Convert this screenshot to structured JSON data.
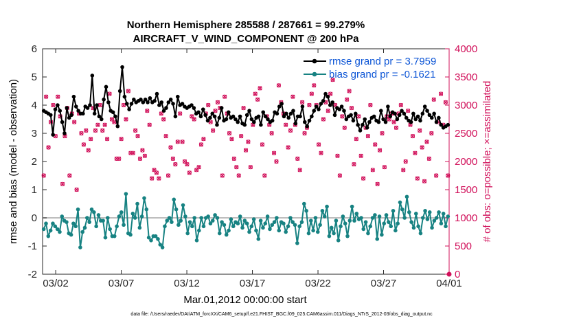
{
  "chart_data": {
    "type": "line",
    "title_line1": "Northern Hemisphere 285588 / 287661 = 99.279%",
    "title_line2": "AIRCRAFT_V_WIND_COMPONENT @ 200 hPa",
    "xlabel": "Mar.01,2012 00:00:00 start",
    "ylabel_left": "rmse and bias (model - observation)",
    "ylabel_right": "# of obs: o=possible; ×=assimilated",
    "footer": "data file: /Users/raeder/DAI/ATM_forcXX/CAM6_setup/f.e21.FHIST_BGC.f09_025.CAM6assim.011/Diags_NTrS_2012-03/obs_diag_output.nc",
    "xlim": [
      0,
      31
    ],
    "ylim_left": [
      -2,
      6
    ],
    "ylim_right": [
      0,
      4000
    ],
    "x_ticks": [
      1,
      6,
      11,
      16,
      21,
      26,
      31
    ],
    "x_tick_labels": [
      "03/02",
      "03/07",
      "03/12",
      "03/17",
      "03/22",
      "03/27",
      "04/01"
    ],
    "y_ticks_left": [
      -2,
      -1,
      0,
      1,
      2,
      3,
      4,
      5,
      6
    ],
    "y_tick_labels_left": [
      "-2",
      "-1",
      "0",
      "1",
      "2",
      "3",
      "4",
      "5",
      "6"
    ],
    "y_ticks_right": [
      0,
      500,
      1000,
      1500,
      2000,
      2500,
      3000,
      3500,
      4000
    ],
    "y_tick_labels_right": [
      "0",
      "500",
      "1000",
      "1500",
      "2000",
      "2500",
      "3000",
      "3500",
      "4000"
    ],
    "colors": {
      "rmse": "#000000",
      "bias": "#178282",
      "obs": "#d1105a",
      "zero_line": "#bdbdbd",
      "legend_text": "#0c55d6"
    },
    "series": [
      {
        "name": "rmse grand pr = 3.7959",
        "key": "rmse",
        "values": [
          3.8,
          3.75,
          3.7,
          3.65,
          2.95,
          3.85,
          4.0,
          3.8,
          3.4,
          3.0,
          3.9,
          3.55,
          3.65,
          4.3,
          3.95,
          3.8,
          3.7,
          3.7,
          3.95,
          3.9,
          4.0,
          5.05,
          3.7,
          4.0,
          3.6,
          3.5,
          4.2,
          4.65,
          4.1,
          3.8,
          3.75,
          3.6,
          3.25,
          4.5,
          5.35,
          4.3,
          4.05,
          3.85,
          4.05,
          4.2,
          4.1,
          4.15,
          4.2,
          4.1,
          4.2,
          4.1,
          4.25,
          4.1,
          4.15,
          4.4,
          4.0,
          4.1,
          3.8,
          3.9,
          4.1,
          4.2,
          4.05,
          3.6,
          4.3,
          4.0,
          4.05,
          3.95,
          3.9,
          3.95,
          4.0,
          3.9,
          3.7,
          3.75,
          3.6,
          3.85,
          3.65,
          3.45,
          3.55,
          3.7,
          3.6,
          3.3,
          3.55,
          3.9,
          3.45,
          3.5,
          3.75,
          3.55,
          3.6,
          3.5,
          3.4,
          3.6,
          3.35,
          3.3,
          3.65,
          3.8,
          3.5,
          3.4,
          3.55,
          3.6,
          3.3,
          3.75,
          3.6,
          3.5,
          3.4,
          3.45,
          3.75,
          3.7,
          3.95,
          4.05,
          3.6,
          3.7,
          3.55,
          3.7,
          3.8,
          3.35,
          3.6,
          3.6,
          3.95,
          3.4,
          3.25,
          3.45,
          3.6,
          3.8,
          3.95,
          3.85,
          4.05,
          4.15,
          4.4,
          4.3,
          4.0,
          4.1,
          3.65,
          3.9,
          3.85,
          3.95,
          3.8,
          3.5,
          3.6,
          3.65,
          3.45,
          3.7,
          3.3,
          3.1,
          3.3,
          3.5,
          3.2,
          3.4,
          3.55,
          3.6,
          3.45,
          3.4,
          3.8,
          3.5,
          3.4,
          3.95,
          3.6,
          3.75,
          3.7,
          3.5,
          3.65,
          3.8,
          3.7,
          3.55,
          3.45,
          3.4,
          3.7,
          3.5,
          3.6,
          3.45,
          3.7,
          3.95,
          3.8,
          3.65,
          3.55,
          3.7,
          3.4,
          3.55,
          3.3,
          3.2,
          3.25,
          3.3
        ]
      },
      {
        "name": "bias grand pr = -0.1621",
        "key": "bias",
        "values": [
          -0.4,
          -0.2,
          -0.65,
          -0.45,
          -0.2,
          -0.3,
          -0.4,
          -0.5,
          0.05,
          -0.1,
          -0.15,
          -0.55,
          -0.6,
          -0.2,
          -0.3,
          0.3,
          -1.05,
          -0.5,
          -0.35,
          0.0,
          -0.15,
          0.3,
          0.2,
          -0.3,
          0.1,
          -0.1,
          -0.1,
          -0.7,
          0.0,
          -0.4,
          -0.65,
          -0.65,
          -0.3,
          0.05,
          0.2,
          -0.25,
          0.85,
          -0.55,
          -0.6,
          0.15,
          0.0,
          0.5,
          -0.35,
          0.05,
          0.7,
          0.3,
          -0.7,
          -0.8,
          -0.65,
          -0.65,
          -0.75,
          -0.95,
          -1.05,
          -0.3,
          -0.1,
          0.0,
          -0.15,
          0.65,
          0.3,
          -0.25,
          -0.1,
          0.45,
          0.05,
          -0.55,
          -0.15,
          -0.3,
          0.0,
          -0.8,
          -0.45,
          0.0,
          -0.3,
          0.0,
          0.05,
          -0.2,
          -0.1,
          0.1,
          0.0,
          -0.55,
          -0.15,
          -0.25,
          -0.6,
          -0.45,
          -0.05,
          -0.3,
          -0.15,
          -0.2,
          0.05,
          -0.35,
          -0.1,
          -0.2,
          -0.5,
          -0.3,
          -0.05,
          -0.45,
          -0.75,
          -0.1,
          -0.35,
          -0.2,
          0.05,
          -0.4,
          -0.25,
          -0.15,
          0.0,
          -0.45,
          -0.15,
          -0.2,
          -0.5,
          -0.3,
          0.0,
          -0.15,
          -0.25,
          -0.9,
          -0.3,
          -0.15,
          0.5,
          0.25,
          -0.55,
          -0.1,
          -0.45,
          0.0,
          -0.5,
          -0.25,
          0.25,
          0.05,
          0.4,
          -0.65,
          -0.35,
          -0.55,
          -0.1,
          -0.8,
          -0.3,
          0.05,
          -0.2,
          -0.65,
          -0.1,
          0.4,
          -0.1,
          0.15,
          -0.05,
          0.0,
          -0.4,
          -0.15,
          -0.55,
          -0.3,
          0.0,
          0.1,
          -0.75,
          0.05,
          -0.6,
          -0.2,
          0.1,
          -0.15,
          -0.3,
          0.25,
          -0.45,
          -0.2,
          0.55,
          0.3,
          0.0,
          0.75,
          0.2,
          -0.15,
          -0.35,
          0.15,
          -0.3,
          -0.55,
          0.0,
          0.25,
          -0.05,
          0.2,
          -0.35,
          -0.1,
          0.0,
          0.2,
          -0.2,
          0.15,
          -0.3,
          0.05
        ]
      }
    ],
    "obs_count": [
      1750,
      3150,
      2250,
      2700,
      3000,
      2450,
      3150,
      2800,
      1600,
      2450,
      2950,
      1750,
      2850,
      2700,
      1500,
      2850,
      2500,
      2300,
      2550,
      2200,
      2400,
      2950,
      2550,
      2650,
      3000,
      2550,
      2650,
      2400,
      3200,
      2750,
      2700,
      2050,
      2050,
      2400,
      3000,
      2750,
      3250,
      2150,
      2150,
      2550,
      2450,
      2050,
      2200,
      2100,
      2900,
      2650,
      1700,
      1850,
      1800,
      1700,
      2850,
      2750,
      2450,
      1750,
      2250,
      2050,
      1950,
      2350,
      2850,
      2350,
      2000,
      1950,
      1800,
      2800,
      2750,
      1850,
      1900,
      2300,
      2400,
      2850,
      3000,
      2700,
      2550,
      2900,
      3050,
      2950,
      1750,
      3150,
      2850,
      2500,
      2400,
      2050,
      1900,
      1750,
      2450,
      2950,
      2200,
      2350,
      1900,
      2650,
      3200,
      3100,
      3300,
      2300,
      1750,
      2800,
      2650,
      2500,
      2150,
      2000,
      3350,
      3050,
      2850,
      2650,
      2250,
      2550,
      3150,
      2650,
      2050,
      1850,
      3050,
      2500,
      2600,
      3000,
      3200,
      3350,
      3000,
      2300,
      2150,
      2750,
      3050,
      2900,
      3200,
      3450,
      3000,
      2100,
      1750,
      2800,
      2600,
      3100,
      3250,
      2950,
      1950,
      2400,
      2800,
      2100,
      1700,
      2600,
      2450,
      3000,
      1850,
      2300,
      1600,
      2200,
      2500,
      1900,
      2800,
      2750,
      2850,
      2700,
      2600,
      2850,
      3000,
      1850,
      2000,
      2900,
      2650,
      2450,
      2150,
      1700,
      2550,
      2250,
      1650,
      2350,
      2050,
      2500,
      3100,
      1750,
      2700,
      3200,
      2650,
      3050,
      1750
    ]
  }
}
